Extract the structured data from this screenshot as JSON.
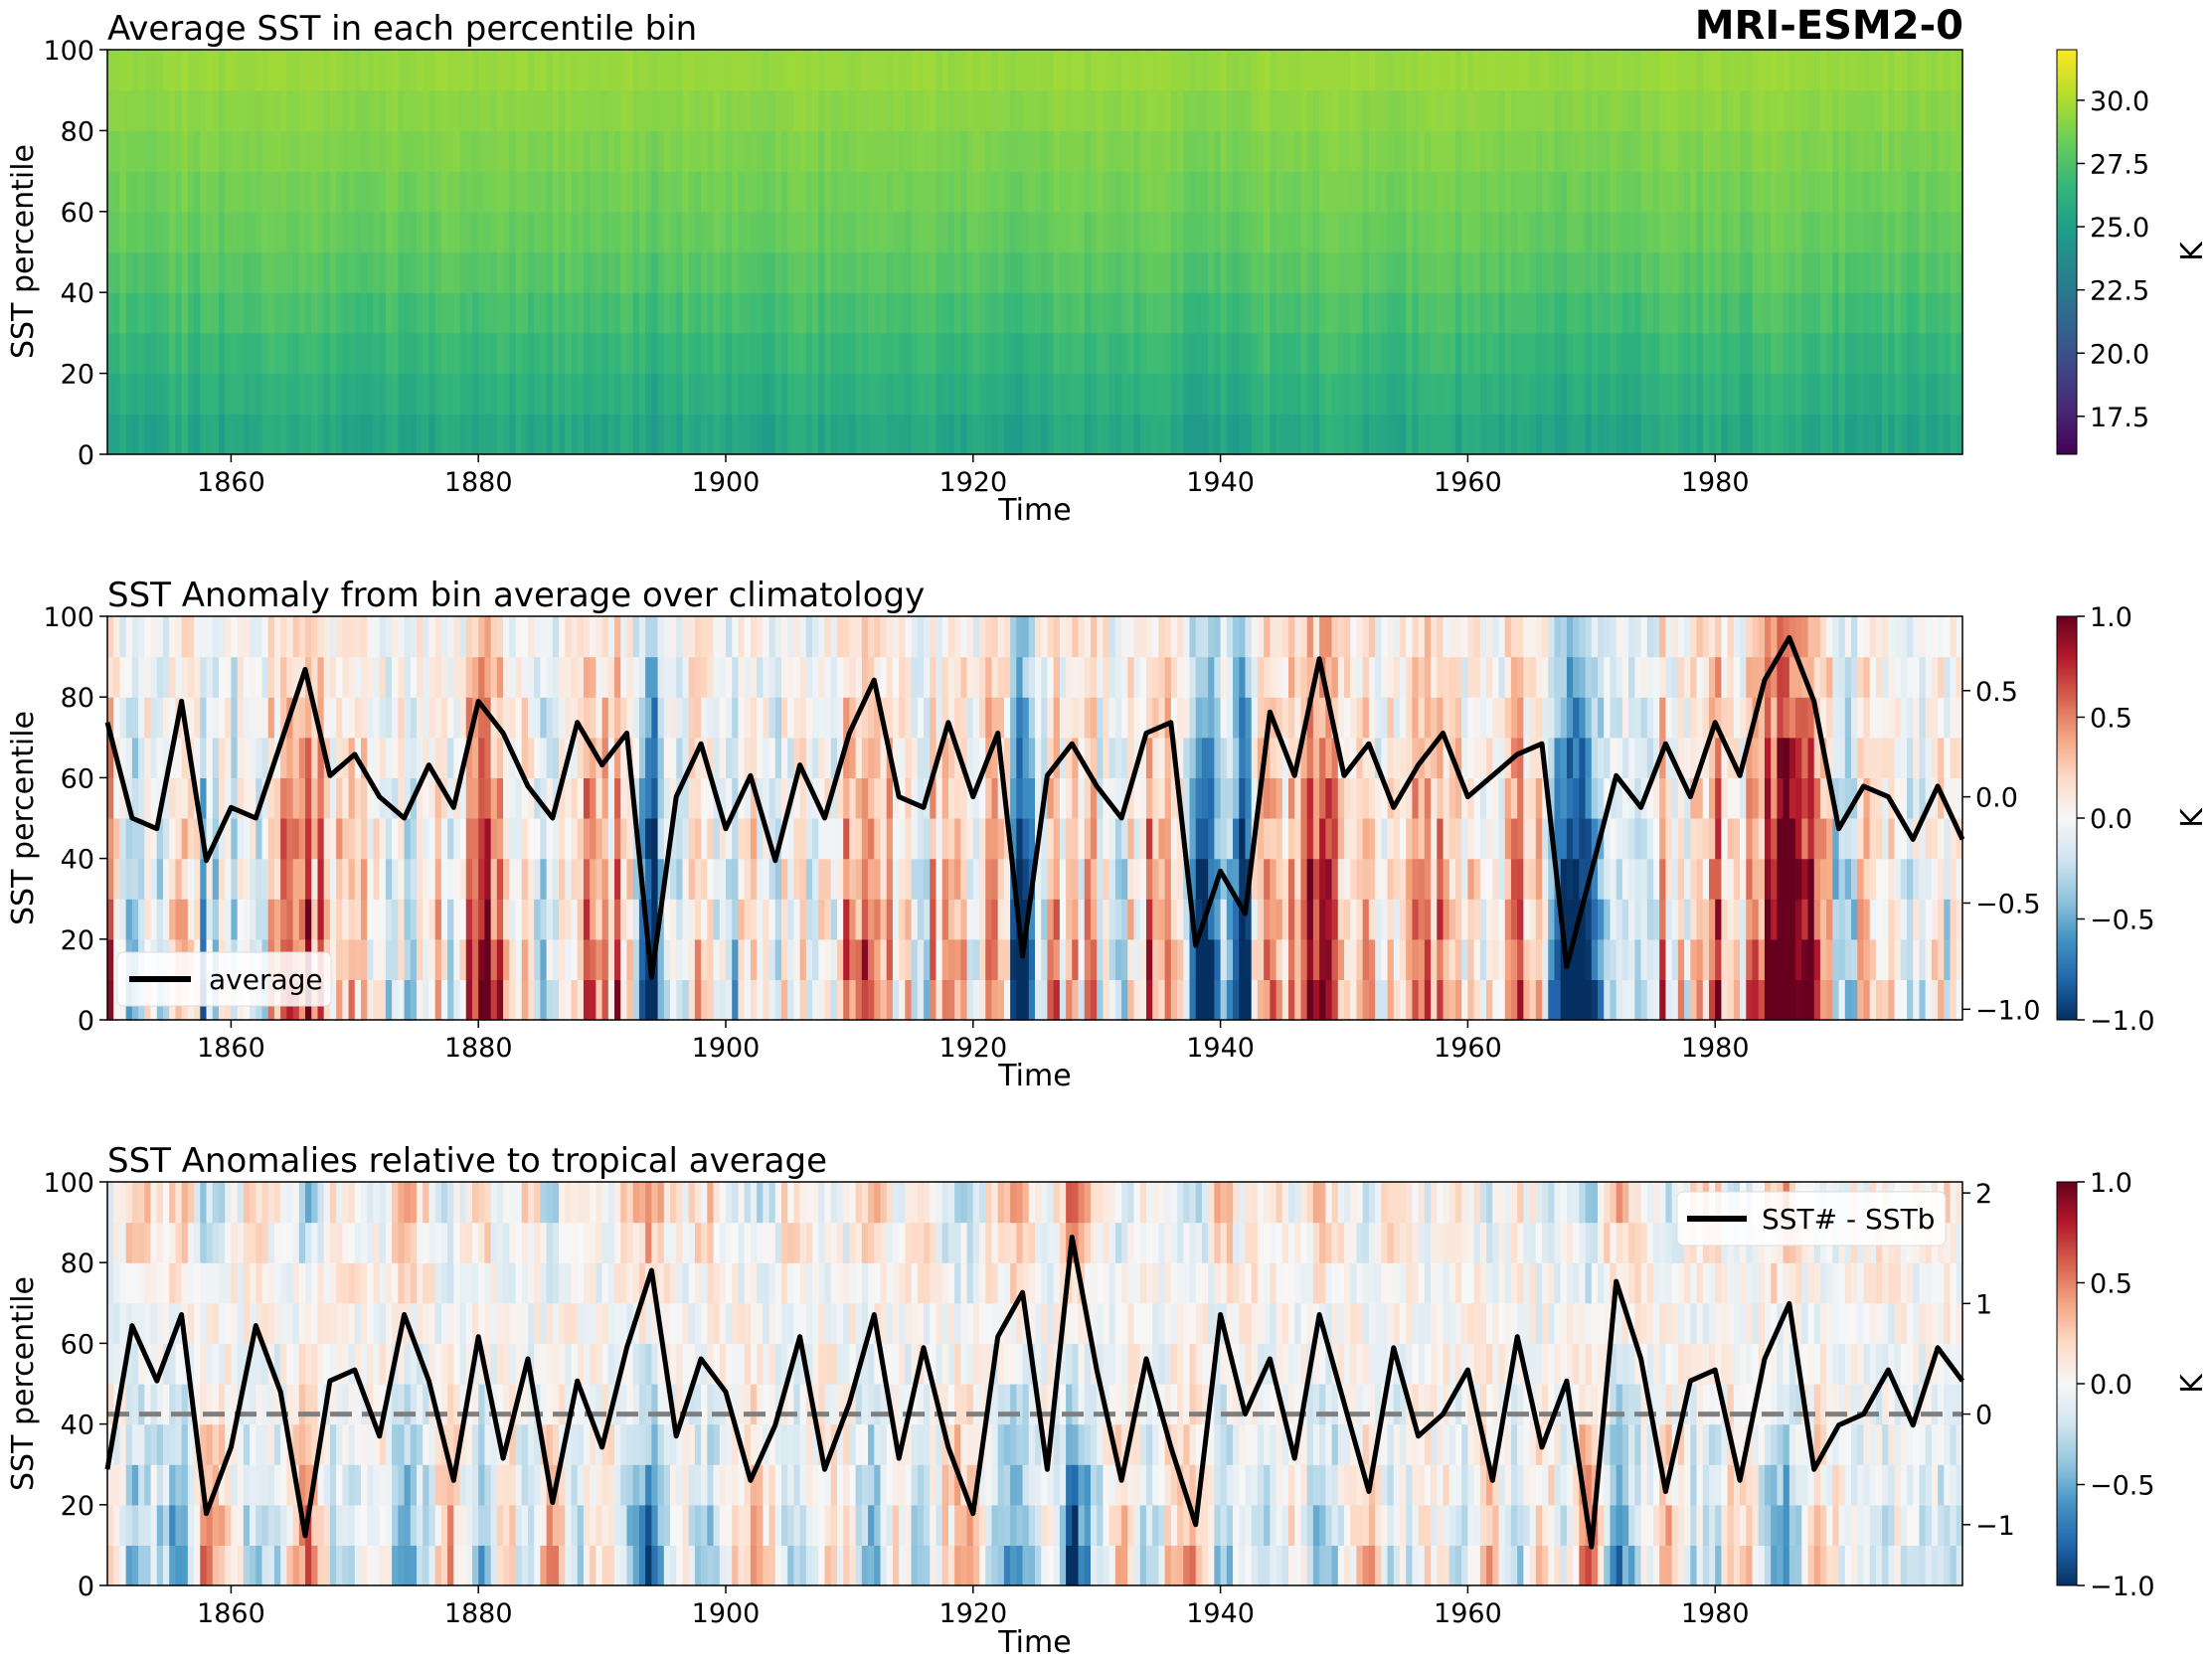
{
  "model_label": "MRI-ESM2-0",
  "colormaps": {
    "viridis": [
      "#440154",
      "#482878",
      "#3e4989",
      "#31688e",
      "#26828e",
      "#1f9e89",
      "#35b779",
      "#6ece58",
      "#b5de2b",
      "#fde725"
    ],
    "rdbu_r": [
      "#053061",
      "#2166ac",
      "#4393c3",
      "#92c5de",
      "#d1e5f0",
      "#f7f7f7",
      "#fddbc7",
      "#f4a582",
      "#d6604d",
      "#b2182b",
      "#67001f"
    ]
  },
  "chart_data": [
    {
      "type": "heatmap",
      "title": "Average SST in each percentile bin",
      "xlabel": "Time",
      "ylabel": "SST percentile",
      "xlim": [
        1850,
        2000
      ],
      "ylim": [
        0,
        100
      ],
      "x_ticks": [
        "1860",
        "1880",
        "1900",
        "1920",
        "1940",
        "1960",
        "1980"
      ],
      "y_ticks": [
        "0",
        "20",
        "40",
        "60",
        "80",
        "100"
      ],
      "colormap": "viridis",
      "color_range": [
        16,
        32
      ],
      "colorbar_label": "K",
      "colorbar_ticks": [
        "17.5",
        "20.0",
        "22.5",
        "25.0",
        "27.5",
        "30.0"
      ],
      "values_summary": {
        "bin_0_10_mean": 25.5,
        "bin_40_60_mean": 28.0,
        "bin_90_100_mean": 29.5
      }
    },
    {
      "type": "heatmap",
      "title": "SST Anomaly from bin average over climatology",
      "xlabel": "Time",
      "ylabel": "SST percentile",
      "xlim": [
        1850,
        2000
      ],
      "ylim": [
        0,
        100
      ],
      "x_ticks": [
        "1860",
        "1880",
        "1900",
        "1920",
        "1940",
        "1960",
        "1980"
      ],
      "y_ticks": [
        "0",
        "20",
        "40",
        "60",
        "80",
        "100"
      ],
      "colormap": "rdbu_r",
      "color_range": [
        -1.0,
        1.0
      ],
      "colorbar_label": "K",
      "colorbar_ticks": [
        "−1.0",
        "−0.5",
        "0.0",
        "0.5",
        "1.0"
      ],
      "right_axis_range": [
        -1.05,
        0.85
      ],
      "right_axis_ticks": [
        "−1.0",
        "−0.5",
        "0.0",
        "0.5"
      ],
      "legend_position": "lower-left",
      "series": [
        {
          "name": "average",
          "color": "#000000",
          "x": [
            1850,
            1852,
            1854,
            1856,
            1858,
            1860,
            1862,
            1864,
            1866,
            1868,
            1870,
            1872,
            1874,
            1876,
            1878,
            1880,
            1882,
            1884,
            1886,
            1888,
            1890,
            1892,
            1894,
            1896,
            1898,
            1900,
            1902,
            1904,
            1906,
            1908,
            1910,
            1912,
            1914,
            1916,
            1918,
            1920,
            1922,
            1924,
            1926,
            1928,
            1930,
            1932,
            1934,
            1936,
            1938,
            1940,
            1942,
            1944,
            1946,
            1948,
            1950,
            1952,
            1954,
            1956,
            1958,
            1960,
            1962,
            1964,
            1966,
            1968,
            1970,
            1972,
            1974,
            1976,
            1978,
            1980,
            1982,
            1984,
            1986,
            1988,
            1990,
            1992,
            1994,
            1996,
            1998,
            2000
          ],
          "y": [
            0.35,
            -0.1,
            -0.15,
            0.45,
            -0.3,
            -0.05,
            -0.1,
            0.25,
            0.6,
            0.1,
            0.2,
            0.0,
            -0.1,
            0.15,
            -0.05,
            0.45,
            0.3,
            0.05,
            -0.1,
            0.35,
            0.15,
            0.3,
            -0.85,
            0.0,
            0.25,
            -0.15,
            0.1,
            -0.3,
            0.15,
            -0.1,
            0.3,
            0.55,
            0.0,
            -0.05,
            0.35,
            0.0,
            0.3,
            -0.75,
            0.1,
            0.25,
            0.05,
            -0.1,
            0.3,
            0.35,
            -0.7,
            -0.35,
            -0.55,
            0.4,
            0.1,
            0.65,
            0.1,
            0.25,
            -0.05,
            0.15,
            0.3,
            0.0,
            0.1,
            0.2,
            0.25,
            -0.8,
            -0.35,
            0.1,
            -0.05,
            0.25,
            0.0,
            0.35,
            0.1,
            0.55,
            0.75,
            0.45,
            -0.15,
            0.05,
            0.0,
            -0.2,
            0.05,
            -0.2
          ]
        }
      ]
    },
    {
      "type": "heatmap",
      "title": "SST Anomalies relative to tropical average",
      "xlabel": "Time",
      "ylabel": "SST percentile",
      "xlim": [
        1850,
        2000
      ],
      "ylim": [
        0,
        100
      ],
      "x_ticks": [
        "1860",
        "1880",
        "1900",
        "1920",
        "1940",
        "1960",
        "1980"
      ],
      "y_ticks": [
        "0",
        "20",
        "40",
        "60",
        "80",
        "100"
      ],
      "colormap": "rdbu_r",
      "color_range": [
        -1.0,
        1.0
      ],
      "colorbar_label": "K",
      "colorbar_ticks": [
        "−1.0",
        "−0.5",
        "0.0",
        "0.5",
        "1.0"
      ],
      "right_axis_range": [
        -1.55,
        2.1
      ],
      "right_axis_ticks": [
        "−1",
        "0",
        "1",
        "2"
      ],
      "reference_line": {
        "y": 0,
        "style": "dashed",
        "color": "#808080"
      },
      "legend_position": "upper-right",
      "series": [
        {
          "name": "SST# - SSTb",
          "color": "#000000",
          "x": [
            1850,
            1852,
            1854,
            1856,
            1858,
            1860,
            1862,
            1864,
            1866,
            1868,
            1870,
            1872,
            1874,
            1876,
            1878,
            1880,
            1882,
            1884,
            1886,
            1888,
            1890,
            1892,
            1894,
            1896,
            1898,
            1900,
            1902,
            1904,
            1906,
            1908,
            1910,
            1912,
            1914,
            1916,
            1918,
            1920,
            1922,
            1924,
            1926,
            1928,
            1930,
            1932,
            1934,
            1936,
            1938,
            1940,
            1942,
            1944,
            1946,
            1948,
            1950,
            1952,
            1954,
            1956,
            1958,
            1960,
            1962,
            1964,
            1966,
            1968,
            1970,
            1972,
            1974,
            1976,
            1978,
            1980,
            1982,
            1984,
            1986,
            1988,
            1990,
            1992,
            1994,
            1996,
            1998,
            2000
          ],
          "y": [
            -0.5,
            0.8,
            0.3,
            0.9,
            -0.9,
            -0.3,
            0.8,
            0.2,
            -1.1,
            0.3,
            0.4,
            -0.2,
            0.9,
            0.3,
            -0.6,
            0.7,
            -0.4,
            0.5,
            -0.8,
            0.3,
            -0.3,
            0.6,
            1.3,
            -0.2,
            0.5,
            0.2,
            -0.6,
            -0.1,
            0.7,
            -0.5,
            0.1,
            0.9,
            -0.4,
            0.6,
            -0.3,
            -0.9,
            0.7,
            1.1,
            -0.5,
            1.6,
            0.4,
            -0.6,
            0.5,
            -0.3,
            -1.0,
            0.9,
            0.0,
            0.5,
            -0.4,
            0.9,
            0.1,
            -0.7,
            0.6,
            -0.2,
            0.0,
            0.4,
            -0.6,
            0.7,
            -0.3,
            0.3,
            -1.2,
            1.2,
            0.5,
            -0.7,
            0.3,
            0.4,
            -0.6,
            0.5,
            1.0,
            -0.5,
            -0.1,
            0.0,
            0.4,
            -0.1,
            0.6,
            0.3
          ]
        }
      ]
    }
  ]
}
